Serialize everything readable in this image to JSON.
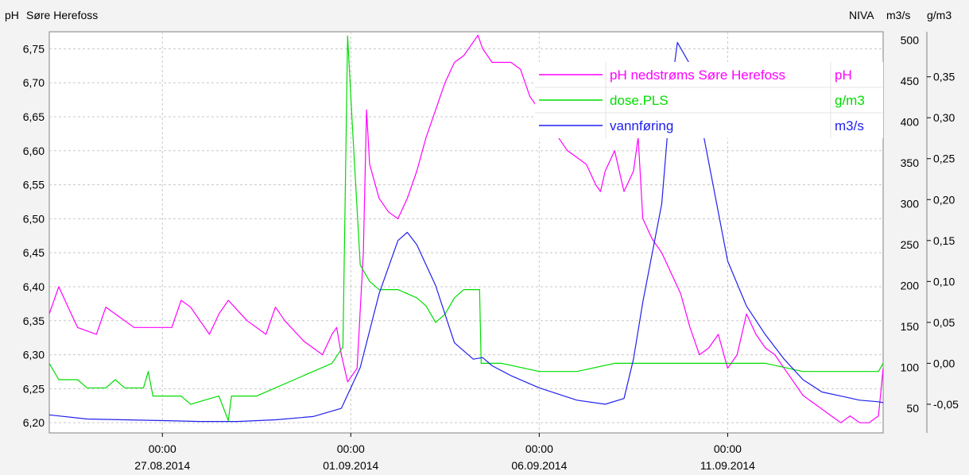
{
  "header": {
    "left_unit": "pH",
    "station": "Søre Herefoss",
    "source": "NIVA",
    "right_unit_1": "m3/s",
    "right_unit_2": "g/m3"
  },
  "chart_data": {
    "type": "line",
    "x_axis": {
      "range": [
        "2014-08-24T00:00",
        "2014-09-15T03:00"
      ],
      "ticks": [
        {
          "time": "00:00",
          "date": "27.08.2014",
          "t": "2014-08-27T00:00"
        },
        {
          "time": "00:00",
          "date": "01.09.2014",
          "t": "2014-09-01T00:00"
        },
        {
          "time": "00:00",
          "date": "06.09.2014",
          "t": "2014-09-06T00:00"
        },
        {
          "time": "00:00",
          "date": "11.09.2014",
          "t": "2014-09-11T00:00"
        }
      ]
    },
    "axes": {
      "ph": {
        "unit": "pH",
        "range": [
          6.185,
          6.775
        ],
        "ticks": [
          "6,20",
          "6,25",
          "6,30",
          "6,35",
          "6,40",
          "6,45",
          "6,50",
          "6,55",
          "6,60",
          "6,65",
          "6,70",
          "6,75"
        ]
      },
      "flow": {
        "unit": "m3/s",
        "range": [
          20,
          510
        ],
        "ticks": [
          "50",
          "100",
          "150",
          "200",
          "250",
          "300",
          "350",
          "400",
          "450",
          "500"
        ]
      },
      "dose": {
        "unit": "g/m3",
        "range": [
          -0.085,
          0.405
        ],
        "ticks": [
          "-0,05",
          "0,00",
          "0,05",
          "0,10",
          "0,15",
          "0,20",
          "0,25",
          "0,30",
          "0,35"
        ]
      }
    },
    "grid": true,
    "legend_position": "top-right",
    "series": [
      {
        "name": "pH nedstrøms Søre Herefoss",
        "unit": "pH",
        "axis": "ph",
        "color": "#ff00ff",
        "points": [
          [
            "2014-08-24T00:00",
            6.36
          ],
          [
            "2014-08-24T06:00",
            6.4
          ],
          [
            "2014-08-24T12:00",
            6.37
          ],
          [
            "2014-08-24T18:00",
            6.34
          ],
          [
            "2014-08-25T06:00",
            6.33
          ],
          [
            "2014-08-25T12:00",
            6.37
          ],
          [
            "2014-08-25T18:00",
            6.36
          ],
          [
            "2014-08-26T06:00",
            6.34
          ],
          [
            "2014-08-26T18:00",
            6.34
          ],
          [
            "2014-08-27T06:00",
            6.34
          ],
          [
            "2014-08-27T12:00",
            6.38
          ],
          [
            "2014-08-27T18:00",
            6.37
          ],
          [
            "2014-08-28T06:00",
            6.33
          ],
          [
            "2014-08-28T12:00",
            6.36
          ],
          [
            "2014-08-28T18:00",
            6.38
          ],
          [
            "2014-08-29T06:00",
            6.35
          ],
          [
            "2014-08-29T18:00",
            6.33
          ],
          [
            "2014-08-30T00:00",
            6.37
          ],
          [
            "2014-08-30T06:00",
            6.35
          ],
          [
            "2014-08-30T18:00",
            6.32
          ],
          [
            "2014-08-31T06:00",
            6.3
          ],
          [
            "2014-08-31T12:00",
            6.33
          ],
          [
            "2014-08-31T15:00",
            6.34
          ],
          [
            "2014-08-31T18:00",
            6.3
          ],
          [
            "2014-08-31T22:00",
            6.26
          ],
          [
            "2014-09-01T04:00",
            6.28
          ],
          [
            "2014-09-01T08:00",
            6.45
          ],
          [
            "2014-09-01T10:00",
            6.66
          ],
          [
            "2014-09-01T12:00",
            6.58
          ],
          [
            "2014-09-01T18:00",
            6.53
          ],
          [
            "2014-09-02T00:00",
            6.51
          ],
          [
            "2014-09-02T06:00",
            6.5
          ],
          [
            "2014-09-02T12:00",
            6.53
          ],
          [
            "2014-09-02T18:00",
            6.57
          ],
          [
            "2014-09-03T00:00",
            6.62
          ],
          [
            "2014-09-03T06:00",
            6.66
          ],
          [
            "2014-09-03T12:00",
            6.7
          ],
          [
            "2014-09-03T18:00",
            6.73
          ],
          [
            "2014-09-04T00:00",
            6.74
          ],
          [
            "2014-09-04T06:00",
            6.76
          ],
          [
            "2014-09-04T09:00",
            6.77
          ],
          [
            "2014-09-04T12:00",
            6.75
          ],
          [
            "2014-09-04T18:00",
            6.73
          ],
          [
            "2014-09-05T06:00",
            6.73
          ],
          [
            "2014-09-05T12:00",
            6.72
          ],
          [
            "2014-09-05T18:00",
            6.68
          ],
          [
            "2014-09-06T00:00",
            6.66
          ],
          [
            "2014-09-06T06:00",
            6.64
          ],
          [
            "2014-09-06T12:00",
            6.62
          ],
          [
            "2014-09-06T18:00",
            6.6
          ],
          [
            "2014-09-07T00:00",
            6.59
          ],
          [
            "2014-09-07T06:00",
            6.58
          ],
          [
            "2014-09-07T12:00",
            6.55
          ],
          [
            "2014-09-07T15:00",
            6.54
          ],
          [
            "2014-09-07T18:00",
            6.57
          ],
          [
            "2014-09-08T00:00",
            6.6
          ],
          [
            "2014-09-08T06:00",
            6.54
          ],
          [
            "2014-09-08T12:00",
            6.57
          ],
          [
            "2014-09-08T15:00",
            6.62
          ],
          [
            "2014-09-08T18:00",
            6.5
          ],
          [
            "2014-09-09T00:00",
            6.47
          ],
          [
            "2014-09-09T06:00",
            6.45
          ],
          [
            "2014-09-09T12:00",
            6.42
          ],
          [
            "2014-09-09T18:00",
            6.39
          ],
          [
            "2014-09-10T00:00",
            6.34
          ],
          [
            "2014-09-10T06:00",
            6.3
          ],
          [
            "2014-09-10T12:00",
            6.31
          ],
          [
            "2014-09-10T18:00",
            6.33
          ],
          [
            "2014-09-11T00:00",
            6.28
          ],
          [
            "2014-09-11T06:00",
            6.3
          ],
          [
            "2014-09-11T12:00",
            6.36
          ],
          [
            "2014-09-11T18:00",
            6.33
          ],
          [
            "2014-09-12T00:00",
            6.31
          ],
          [
            "2014-09-12T06:00",
            6.3
          ],
          [
            "2014-09-12T12:00",
            6.28
          ],
          [
            "2014-09-12T18:00",
            6.26
          ],
          [
            "2014-09-13T00:00",
            6.24
          ],
          [
            "2014-09-13T06:00",
            6.23
          ],
          [
            "2014-09-13T12:00",
            6.22
          ],
          [
            "2014-09-13T18:00",
            6.21
          ],
          [
            "2014-09-14T00:00",
            6.2
          ],
          [
            "2014-09-14T06:00",
            6.21
          ],
          [
            "2014-09-14T12:00",
            6.2
          ],
          [
            "2014-09-14T18:00",
            6.2
          ],
          [
            "2014-09-15T00:00",
            6.21
          ],
          [
            "2014-09-15T03:00",
            6.28
          ]
        ]
      },
      {
        "name": "dose.PLS",
        "unit": "g/m3",
        "axis": "dose",
        "color": "#00dd00",
        "points": [
          [
            "2014-08-24T00:00",
            0.0
          ],
          [
            "2014-08-24T06:00",
            -0.02
          ],
          [
            "2014-08-24T18:00",
            -0.02
          ],
          [
            "2014-08-25T00:00",
            -0.03
          ],
          [
            "2014-08-25T12:00",
            -0.03
          ],
          [
            "2014-08-25T18:00",
            -0.02
          ],
          [
            "2014-08-26T00:00",
            -0.03
          ],
          [
            "2014-08-26T12:00",
            -0.03
          ],
          [
            "2014-08-26T15:00",
            -0.01
          ],
          [
            "2014-08-26T18:00",
            -0.04
          ],
          [
            "2014-08-27T12:00",
            -0.04
          ],
          [
            "2014-08-27T18:00",
            -0.05
          ],
          [
            "2014-08-28T12:00",
            -0.04
          ],
          [
            "2014-08-28T18:00",
            -0.07
          ],
          [
            "2014-08-28T20:00",
            -0.04
          ],
          [
            "2014-08-29T12:00",
            -0.04
          ],
          [
            "2014-08-30T00:00",
            -0.03
          ],
          [
            "2014-08-30T12:00",
            -0.02
          ],
          [
            "2014-08-31T00:00",
            -0.01
          ],
          [
            "2014-08-31T12:00",
            0.0
          ],
          [
            "2014-08-31T19:00",
            0.02
          ],
          [
            "2014-08-31T22:00",
            0.4
          ],
          [
            "2014-09-01T01:00",
            0.29
          ],
          [
            "2014-09-01T06:00",
            0.12
          ],
          [
            "2014-09-01T12:00",
            0.1
          ],
          [
            "2014-09-01T18:00",
            0.09
          ],
          [
            "2014-09-02T06:00",
            0.09
          ],
          [
            "2014-09-02T18:00",
            0.08
          ],
          [
            "2014-09-03T00:00",
            0.07
          ],
          [
            "2014-09-03T06:00",
            0.05
          ],
          [
            "2014-09-03T12:00",
            0.06
          ],
          [
            "2014-09-03T18:00",
            0.08
          ],
          [
            "2014-09-04T00:00",
            0.09
          ],
          [
            "2014-09-04T10:00",
            0.09
          ],
          [
            "2014-09-04T11:00",
            0.0
          ],
          [
            "2014-09-05T00:00",
            0.0
          ],
          [
            "2014-09-06T00:00",
            -0.01
          ],
          [
            "2014-09-07T00:00",
            -0.01
          ],
          [
            "2014-09-08T00:00",
            0.0
          ],
          [
            "2014-09-09T00:00",
            0.0
          ],
          [
            "2014-09-10T00:00",
            0.0
          ],
          [
            "2014-09-11T00:00",
            0.0
          ],
          [
            "2014-09-12T00:00",
            0.0
          ],
          [
            "2014-09-13T00:00",
            -0.01
          ],
          [
            "2014-09-14T00:00",
            -0.01
          ],
          [
            "2014-09-15T00:00",
            -0.01
          ],
          [
            "2014-09-15T03:00",
            0.0
          ]
        ]
      },
      {
        "name": "vannføring",
        "unit": "m3/s",
        "axis": "flow",
        "color": "#2020ee",
        "points": [
          [
            "2014-08-24T00:00",
            42
          ],
          [
            "2014-08-25T00:00",
            37
          ],
          [
            "2014-08-26T00:00",
            36
          ],
          [
            "2014-08-27T00:00",
            35
          ],
          [
            "2014-08-28T00:00",
            34
          ],
          [
            "2014-08-29T00:00",
            34
          ],
          [
            "2014-08-30T00:00",
            36
          ],
          [
            "2014-08-31T00:00",
            40
          ],
          [
            "2014-08-31T18:00",
            50
          ],
          [
            "2014-09-01T06:00",
            100
          ],
          [
            "2014-09-01T18:00",
            190
          ],
          [
            "2014-09-02T06:00",
            255
          ],
          [
            "2014-09-02T12:00",
            265
          ],
          [
            "2014-09-02T18:00",
            250
          ],
          [
            "2014-09-03T06:00",
            200
          ],
          [
            "2014-09-03T18:00",
            130
          ],
          [
            "2014-09-04T06:00",
            110
          ],
          [
            "2014-09-04T12:00",
            112
          ],
          [
            "2014-09-04T18:00",
            102
          ],
          [
            "2014-09-05T06:00",
            90
          ],
          [
            "2014-09-06T00:00",
            75
          ],
          [
            "2014-09-07T00:00",
            60
          ],
          [
            "2014-09-07T18:00",
            55
          ],
          [
            "2014-09-08T06:00",
            62
          ],
          [
            "2014-09-08T12:00",
            110
          ],
          [
            "2014-09-08T18:00",
            180
          ],
          [
            "2014-09-09T06:00",
            300
          ],
          [
            "2014-09-09T12:00",
            440
          ],
          [
            "2014-09-09T16:00",
            497
          ],
          [
            "2014-09-10T00:00",
            470
          ],
          [
            "2014-09-10T12:00",
            350
          ],
          [
            "2014-09-11T00:00",
            230
          ],
          [
            "2014-09-11T12:00",
            175
          ],
          [
            "2014-09-12T00:00",
            140
          ],
          [
            "2014-09-12T12:00",
            110
          ],
          [
            "2014-09-13T00:00",
            85
          ],
          [
            "2014-09-13T12:00",
            70
          ],
          [
            "2014-09-14T00:00",
            65
          ],
          [
            "2014-09-14T12:00",
            60
          ],
          [
            "2014-09-15T00:00",
            58
          ],
          [
            "2014-09-15T03:00",
            57
          ]
        ]
      }
    ]
  }
}
